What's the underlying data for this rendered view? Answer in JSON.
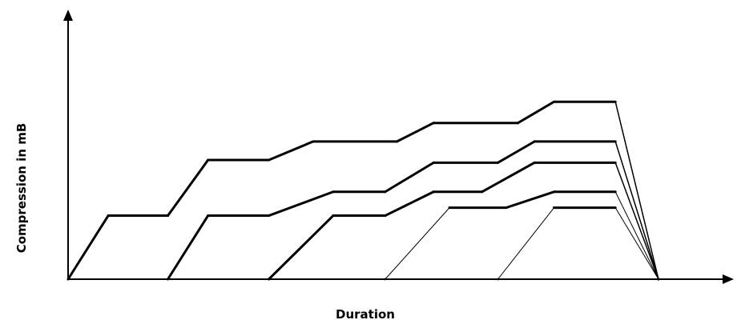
{
  "chart_data": {
    "type": "line",
    "xlabel": "Duration",
    "ylabel": "Compression in mB",
    "xlim": [
      0,
      100
    ],
    "ylim": [
      0,
      100
    ],
    "grid": false,
    "line_color": "#000000",
    "series": [
      {
        "points": [
          [
            0,
            0
          ],
          [
            6.8,
            24
          ],
          [
            16.9,
            24
          ],
          [
            23.7,
            45
          ],
          [
            34,
            45
          ],
          [
            41.5,
            52
          ],
          [
            55.7,
            52
          ],
          [
            61.9,
            59
          ],
          [
            76.2,
            59
          ],
          [
            82.3,
            67
          ],
          [
            92.7,
            67
          ],
          [
            100,
            0
          ]
        ],
        "weight": "bold"
      },
      {
        "points": [
          [
            16.9,
            0
          ],
          [
            23.7,
            24
          ],
          [
            34,
            24
          ],
          [
            44.9,
            33
          ],
          [
            53.7,
            33
          ],
          [
            61.9,
            44
          ],
          [
            72.8,
            44
          ],
          [
            79,
            52
          ],
          [
            92.7,
            52
          ],
          [
            100,
            0
          ]
        ],
        "weight": "bold"
      },
      {
        "points": [
          [
            34,
            0
          ],
          [
            44.9,
            24
          ],
          [
            53.7,
            24
          ],
          [
            61.9,
            33
          ],
          [
            70.1,
            33
          ],
          [
            79,
            44
          ],
          [
            92.7,
            44
          ],
          [
            100,
            0
          ]
        ],
        "weight": "bold"
      },
      {
        "points": [
          [
            53.7,
            0
          ],
          [
            64.6,
            27
          ],
          [
            74.2,
            27
          ],
          [
            82.3,
            33
          ],
          [
            92.7,
            33
          ],
          [
            100,
            0
          ]
        ],
        "weight": "mixed"
      },
      {
        "points": [
          [
            72.8,
            0
          ],
          [
            82.3,
            27
          ],
          [
            92.7,
            27
          ],
          [
            100,
            0
          ]
        ],
        "weight": "mixed"
      }
    ]
  }
}
